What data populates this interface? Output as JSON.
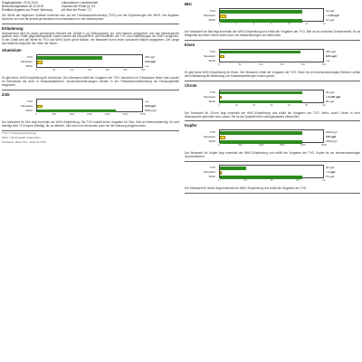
{
  "header": {
    "eingangsdatum_label": "Eingangsdatum:",
    "eingangsdatum": "20.11.2015",
    "bezeichnung_label": "Bezeichnungsdatum",
    "bezeichnung": "05.12.2015",
    "probe_label": "Erhältnis Angaben zur Probe:",
    "probe": "Wohnung",
    "lab_label": "Laboratorium:",
    "lab": "Labornummer",
    "volumen_label": "Volumen der Probe (l):",
    "volumen": "0,5",
    "ph_label": "pH-Wert der Probe:",
    "ph": "7,2"
  },
  "intro": "Die Werte der folgenden Grafiken beziehen sich auf die Trinkwasserverordnung (TVO) und die Empfehlungen der WHO. Die Angaben beziehen sich auf die jeweils gemessenen Konzentrationen in der Wasserprobe.",
  "erlaeuterung_title": "Erläuterung",
  "erlaeuterung": "Nachstehend wird für jedes gemessene Element der Gehalt in µg (Mikrogramm) pro Liter Wasser angegeben und das Messergebnis grafisch einer Grafik gegenübergestellt. Dabei werden die Messwerte in den Richtlinien der TVO und Empfehlungen der WHO verglichen. In der Grafik wird die Werte für TVO und WHO durch grüne Balken, der Messwert durch einen schwarzen Balken angegeben. Die Länge des Balkens entspricht der Höhe der Werte.",
  "sections": [
    {
      "id": "aluminium",
      "title": "Aluminium",
      "labels": [
        "TVO",
        "Messwert",
        "WHO"
      ],
      "values": [
        "200 µg/l",
        "14,8 µg/l",
        "n.a."
      ],
      "fractions": [
        0.62,
        0.05,
        0
      ],
      "axis": [
        "0",
        "50",
        "100",
        "150",
        "200",
        "250",
        "300"
      ],
      "text": "Es gibt keine WHO-Empfehlung für Aluminium. Der Messwert erfüllt die Vorgaben der TVO. Aluminium im Trinkwasser findet man sowohl im Rohwasser als auch in Hausinstallationen. Aluminiumverbindungen werden in der Trinkwasseraufbereitung als Flockungsmittel eingesetzt."
    },
    {
      "id": "zink",
      "title": "Zink",
      "labels": [
        "TVO",
        "Messwert",
        "WHO"
      ],
      "values": [
        "n.a.",
        "73,8 µg/l",
        "3000 µg/l"
      ],
      "fractions": [
        0,
        0.05,
        0.75
      ],
      "axis": [
        "0",
        "500",
        "1000",
        "1500",
        "2000",
        "2500",
        "3000"
      ],
      "text": "Der Messwert für Zink liegt innerhalb der WHO-Empfehlung. Die TVO enthält keine Vorgaben für Zink. Zink ist lebensnotwendig. Es sind beteiligt über 70 Enzyme beteiligt, die es aktiviert. Zink wird vom Menschen auch mit der Nahrung aufgenommen."
    },
    {
      "id": "blei",
      "title": "Blei",
      "labels": [
        "TVO",
        "Messwert",
        "WHO"
      ],
      "values": [
        "10 µg/l",
        "< 1,00 µg/l",
        "10 µg/l"
      ],
      "fractions": [
        0.8,
        0.06,
        0.8
      ],
      "axis": [
        "0",
        "2",
        "4",
        "6",
        "8",
        "10",
        "12"
      ],
      "text": "Der Messwert für Blei liegt innerhalb der WHO-Empfehlung und erfüllt die Vorgaben der TVO. Blei ist ein toxisches Schwermetall. Es ist Bleigehalt ab einem hohen Anteil auch von Wasserleitungen aus Bleirohren."
    },
    {
      "id": "eisen",
      "title": "Eisen",
      "labels": [
        "TVO",
        "Messwert",
        "WHO"
      ],
      "values": [
        "200 µg/l",
        "9,61 µg/l",
        "n.a."
      ],
      "fractions": [
        0.78,
        0.04,
        0
      ],
      "axis": [
        "0",
        "50",
        "100",
        "150",
        "200",
        "250"
      ],
      "text": "Es gibt keine WHO-Empfehlung für Eisen. Der Messwert erfüllt die Vorgaben der TVO. Eisen ist ein lebensnotwendiges Element, selbst wenn Belastung die Bedeutung von Kaliwasserleitungen hinaus gehen."
    },
    {
      "id": "chrom",
      "title": "Chrom",
      "labels": [
        "TVO",
        "Messwert",
        "WHO"
      ],
      "values": [
        "50 µg/l",
        "< 0,100 µg/l",
        "50 µg/l"
      ],
      "fractions": [
        0.8,
        0.02,
        0.8
      ],
      "axis": [
        "0",
        "10",
        "20",
        "30",
        "40",
        "50",
        "60"
      ],
      "text": "Der Messwert für Chrom liegt innerhalb der WHO-Empfehlung und erfüllt die Vorgaben der TVO. Wenn zuviel Chrom in Ihrer Wasserprobe gefunden wird, lassen Sie es die Qualität Ihres Leitungswassers überprüfen."
    },
    {
      "id": "kupfer",
      "title": "Kupfer",
      "labels": [
        "TVO",
        "Messwert",
        "WHO"
      ],
      "values": [
        "2000 µg/l",
        "122 µg/l",
        "2000 µg/l"
      ],
      "fractions": [
        0.8,
        0.05,
        0.8
      ],
      "axis": [
        "0",
        "500",
        "1000",
        "1500",
        "2000",
        "2500"
      ],
      "text": "Der Messwert für Kupfer liegt innerhalb der WHO-Empfehlung und erfüllt die Vorgaben der TVO. Kupfer ist ein lebensnotwendiges Spurenelement."
    },
    {
      "id": "nickel",
      "title": "",
      "labels": [
        "TVO",
        "Messwert",
        "WHO"
      ],
      "values": [
        "20 µg/l",
        "< 1 µg/l",
        "70 µg/l"
      ],
      "fractions": [
        0.25,
        0.02,
        0.8
      ],
      "axis": [
        "0",
        "20",
        "40",
        "60",
        "80"
      ],
      "text": "Der Messwert für Nickel liegt innerhalb der WHO-Empfehlung und erfüllt die Vorgaben der TVO."
    }
  ],
  "footnote_tvo": "TVO = Trinkwasserverordnung",
  "footnote_who": "WHO = World Health Organization",
  "footnote_rights": "Richtwerte: WHO TVO - Stand 11.2015"
}
